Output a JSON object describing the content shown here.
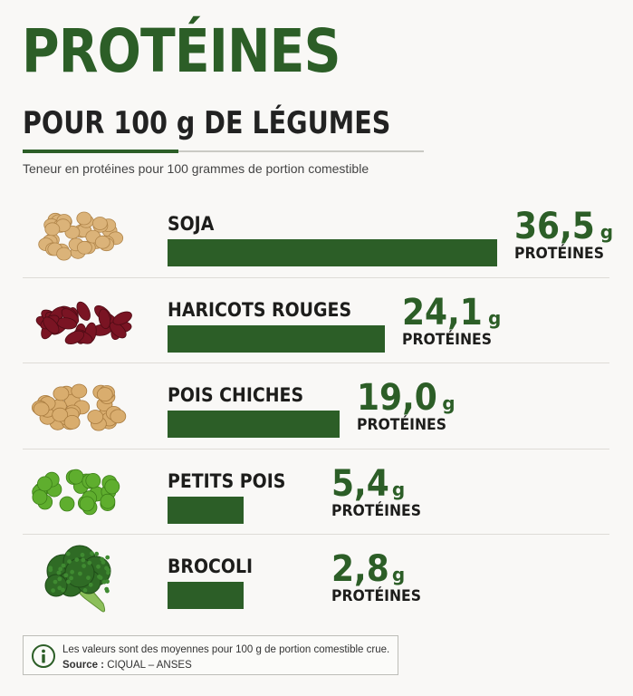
{
  "header": {
    "title": "PROTÉINES",
    "subtitle": "POUR 100 g DE LÉGUMES",
    "description": "Teneur en protéines pour 100 grammes de portion comestible"
  },
  "colors": {
    "accent": "#2c5e27",
    "text": "#1d1d1b",
    "background": "#f9f8f6"
  },
  "chart_data": {
    "type": "bar",
    "orientation": "horizontal",
    "categories": [
      "SOJA",
      "HARICOTS ROUGES",
      "POIS CHICHES",
      "PETITS POIS",
      "BROCOLI"
    ],
    "values": [
      36.5,
      24.1,
      19.0,
      5.4,
      2.8
    ],
    "value_labels": [
      "36,5",
      "24,1",
      "19,0",
      "5,4",
      "2,8"
    ],
    "unit": "g",
    "value_caption": "PROTÉINES",
    "icons": [
      "soybeans-icon",
      "kidney-beans-icon",
      "chickpeas-icon",
      "green-peas-icon",
      "broccoli-icon"
    ],
    "grid": false,
    "legend": "none"
  },
  "footer": {
    "note": "Les valeurs sont des moyennes pour 100 g de portion comestible crue.",
    "source_label": "Source :",
    "source_value": "CIQUAL – ANSES",
    "icon": "info-icon"
  }
}
